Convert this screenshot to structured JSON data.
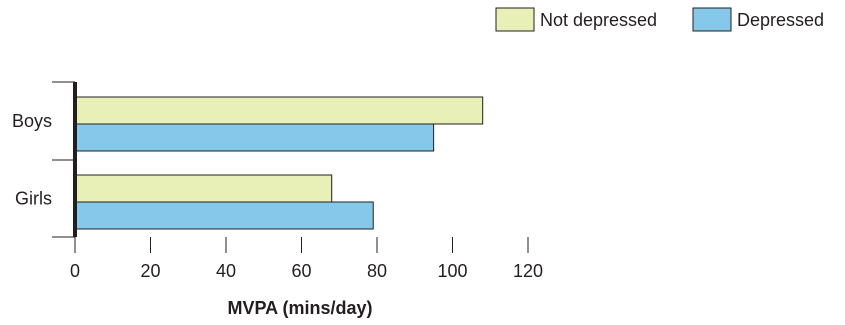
{
  "chart_data": {
    "type": "bar",
    "orientation": "horizontal",
    "categories": [
      "Boys",
      "Girls"
    ],
    "series": [
      {
        "name": "Not depressed",
        "values": [
          108,
          68
        ],
        "color": "#e8f0b8"
      },
      {
        "name": "Depressed",
        "values": [
          95,
          79
        ],
        "color": "#86c8ea"
      }
    ],
    "xlabel": "MVPA (mins/day)",
    "ylabel": "",
    "xlim": [
      0,
      120
    ],
    "xticks": [
      0,
      20,
      40,
      60,
      80,
      100,
      120
    ],
    "grid": false,
    "legend_position": "top-right"
  }
}
